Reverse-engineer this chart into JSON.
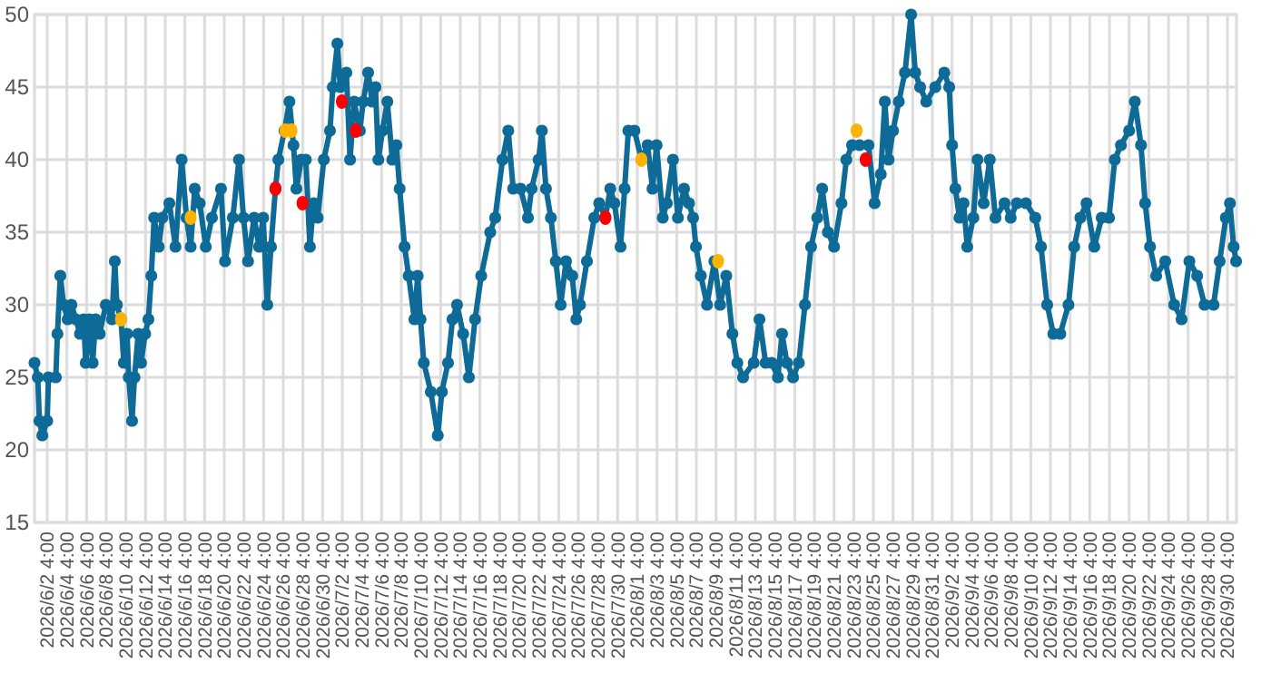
{
  "chart_data": {
    "type": "line",
    "marker": "circle",
    "grid": true,
    "xlim": [
      "2026-05-31T21:00",
      "2026-10-01T02:00"
    ],
    "ylim": [
      15,
      50
    ],
    "yticks": [
      15,
      20,
      25,
      30,
      35,
      40,
      45,
      50
    ],
    "xticks": [
      {
        "value": "2026-06-02T04:00",
        "label": "2026/6/2 4:00"
      },
      {
        "value": "2026-06-04T04:00",
        "label": "2026/6/4 4:00"
      },
      {
        "value": "2026-06-06T04:00",
        "label": "2026/6/6 4:00"
      },
      {
        "value": "2026-06-08T04:00",
        "label": "2026/6/8 4:00"
      },
      {
        "value": "2026-06-10T04:00",
        "label": "2026/6/10 4:00"
      },
      {
        "value": "2026-06-12T04:00",
        "label": "2026/6/12 4:00"
      },
      {
        "value": "2026-06-14T04:00",
        "label": "2026/6/14 4:00"
      },
      {
        "value": "2026-06-16T04:00",
        "label": "2026/6/16 4:00"
      },
      {
        "value": "2026-06-18T04:00",
        "label": "2026/6/18 4:00"
      },
      {
        "value": "2026-06-20T04:00",
        "label": "2026/6/20 4:00"
      },
      {
        "value": "2026-06-22T04:00",
        "label": "2026/6/22 4:00"
      },
      {
        "value": "2026-06-24T04:00",
        "label": "2026/6/24 4:00"
      },
      {
        "value": "2026-06-26T04:00",
        "label": "2026/6/26 4:00"
      },
      {
        "value": "2026-06-28T04:00",
        "label": "2026/6/28 4:00"
      },
      {
        "value": "2026-06-30T04:00",
        "label": "2026/6/30 4:00"
      },
      {
        "value": "2026-07-02T04:00",
        "label": "2026/7/2 4:00"
      },
      {
        "value": "2026-07-04T04:00",
        "label": "2026/7/4 4:00"
      },
      {
        "value": "2026-07-06T04:00",
        "label": "2026/7/6 4:00"
      },
      {
        "value": "2026-07-08T04:00",
        "label": "2026/7/8 4:00"
      },
      {
        "value": "2026-07-10T04:00",
        "label": "2026/7/10 4:00"
      },
      {
        "value": "2026-07-12T04:00",
        "label": "2026/7/12 4:00"
      },
      {
        "value": "2026-07-14T04:00",
        "label": "2026/7/14 4:00"
      },
      {
        "value": "2026-07-16T04:00",
        "label": "2026/7/16 4:00"
      },
      {
        "value": "2026-07-18T04:00",
        "label": "2026/7/18 4:00"
      },
      {
        "value": "2026-07-20T04:00",
        "label": "2026/7/20 4:00"
      },
      {
        "value": "2026-07-22T04:00",
        "label": "2026/7/22 4:00"
      },
      {
        "value": "2026-07-24T04:00",
        "label": "2026/7/24 4:00"
      },
      {
        "value": "2026-07-26T04:00",
        "label": "2026/7/26 4:00"
      },
      {
        "value": "2026-07-28T04:00",
        "label": "2026/7/28 4:00"
      },
      {
        "value": "2026-07-30T04:00",
        "label": "2026/7/30 4:00"
      },
      {
        "value": "2026-08-01T04:00",
        "label": "2026/8/1 4:00"
      },
      {
        "value": "2026-08-03T04:00",
        "label": "2026/8/3 4:00"
      },
      {
        "value": "2026-08-05T04:00",
        "label": "2026/8/5 4:00"
      },
      {
        "value": "2026-08-07T04:00",
        "label": "2026/8/7 4:00"
      },
      {
        "value": "2026-08-09T04:00",
        "label": "2026/8/9 4:00"
      },
      {
        "value": "2026-08-11T04:00",
        "label": "2026/8/11 4:00"
      },
      {
        "value": "2026-08-13T04:00",
        "label": "2026/8/13 4:00"
      },
      {
        "value": "2026-08-15T04:00",
        "label": "2026/8/15 4:00"
      },
      {
        "value": "2026-08-17T04:00",
        "label": "2026/8/17 4:00"
      },
      {
        "value": "2026-08-19T04:00",
        "label": "2026/8/19 4:00"
      },
      {
        "value": "2026-08-21T04:00",
        "label": "2026/8/21 4:00"
      },
      {
        "value": "2026-08-23T04:00",
        "label": "2026/8/23 4:00"
      },
      {
        "value": "2026-08-25T04:00",
        "label": "2026/8/25 4:00"
      },
      {
        "value": "2026-08-27T04:00",
        "label": "2026/8/27 4:00"
      },
      {
        "value": "2026-08-29T04:00",
        "label": "2026/8/29 4:00"
      },
      {
        "value": "2026-08-31T04:00",
        "label": "2026/8/31 4:00"
      },
      {
        "value": "2026-09-02T04:00",
        "label": "2026/9/2 4:00"
      },
      {
        "value": "2026-09-04T04:00",
        "label": "2026/9/4 4:00"
      },
      {
        "value": "2026-09-06T04:00",
        "label": "2026/9/6 4:00"
      },
      {
        "value": "2026-09-08T04:00",
        "label": "2026/9/8 4:00"
      },
      {
        "value": "2026-09-10T04:00",
        "label": "2026/9/10 4:00"
      },
      {
        "value": "2026-09-12T04:00",
        "label": "2026/9/12 4:00"
      },
      {
        "value": "2026-09-14T04:00",
        "label": "2026/9/14 4:00"
      },
      {
        "value": "2026-09-16T04:00",
        "label": "2026/9/16 4:00"
      },
      {
        "value": "2026-09-18T04:00",
        "label": "2026/9/18 4:00"
      },
      {
        "value": "2026-09-20T04:00",
        "label": "2026/9/20 4:00"
      },
      {
        "value": "2026-09-22T04:00",
        "label": "2026/9/22 4:00"
      },
      {
        "value": "2026-09-24T04:00",
        "label": "2026/9/24 4:00"
      },
      {
        "value": "2026-09-26T04:00",
        "label": "2026/9/26 4:00"
      },
      {
        "value": "2026-09-28T04:00",
        "label": "2026/9/28 4:00"
      },
      {
        "value": "2026-09-30T04:00",
        "label": "2026/9/30 4:00"
      }
    ],
    "series": [
      {
        "color": "#0e6a96",
        "x": [
          "2026-05-31T21:00",
          "2026-06-01T05:00",
          "2026-06-01T09:00",
          "2026-06-01T16:00",
          "2026-06-02T04:00",
          "2026-06-02T07:00",
          "2026-06-03T01:00",
          "2026-06-03T05:00",
          "2026-06-03T12:00",
          "2026-06-03T20:00",
          "2026-06-04T06:00",
          "2026-06-04T15:00",
          "2026-06-05T02:00",
          "2026-06-05T12:00",
          "2026-06-05T21:00",
          "2026-06-06T02:00",
          "2026-06-06T11:00",
          "2026-06-06T19:00",
          "2026-06-07T02:00",
          "2026-06-07T12:00",
          "2026-06-08T03:00",
          "2026-06-08T18:00",
          "2026-06-09T01:00",
          "2026-06-09T06:00",
          "2026-06-09T16:00",
          "2026-06-09T23:00",
          "2026-06-10T07:00",
          "2026-06-10T11:00",
          "2026-06-10T19:00",
          "2026-06-11T01:00",
          "2026-06-11T10:00",
          "2026-06-11T17:00",
          "2026-06-12T03:00",
          "2026-06-12T11:00",
          "2026-06-12T18:00",
          "2026-06-13T01:00",
          "2026-06-13T12:00",
          "2026-06-13T21:00",
          "2026-06-14T14:00",
          "2026-06-15T05:00",
          "2026-06-15T20:00",
          "2026-06-16T08:00",
          "2026-06-16T18:00",
          "2026-06-17T04:00",
          "2026-06-17T16:00",
          "2026-06-18T07:00",
          "2026-06-18T22:00",
          "2026-06-19T20:00",
          "2026-06-20T06:00",
          "2026-06-21T01:00",
          "2026-06-21T16:00",
          "2026-06-22T03:00",
          "2026-06-22T14:00",
          "2026-06-23T05:00",
          "2026-06-23T17:00",
          "2026-06-24T03:00",
          "2026-06-24T13:00",
          "2026-06-24T22:00",
          "2026-06-25T09:00",
          "2026-06-25T16:00",
          "2026-06-26T07:00",
          "2026-06-26T19:00",
          "2026-06-27T05:00",
          "2026-06-27T12:00",
          "2026-06-28T00:00",
          "2026-06-28T11:00",
          "2026-06-28T21:00",
          "2026-06-29T06:00",
          "2026-06-29T16:00",
          "2026-06-30T07:00",
          "2026-06-30T22:00",
          "2026-07-01T05:00",
          "2026-07-01T16:00",
          "2026-07-01T23:00",
          "2026-07-02T14:00",
          "2026-07-02T23:00",
          "2026-07-03T09:00",
          "2026-07-03T23:00",
          "2026-07-04T07:00",
          "2026-07-04T19:00",
          "2026-07-05T05:00",
          "2026-07-05T13:00",
          "2026-07-05T20:00",
          "2026-07-06T06:00",
          "2026-07-06T18:00",
          "2026-07-07T06:00",
          "2026-07-07T16:00",
          "2026-07-08T00:00",
          "2026-07-08T12:00",
          "2026-07-08T22:00",
          "2026-07-09T12:00",
          "2026-07-09T20:00",
          "2026-07-10T03:00",
          "2026-07-10T11:00",
          "2026-07-11T04:00",
          "2026-07-11T21:00",
          "2026-07-12T07:00",
          "2026-07-12T22:00",
          "2026-07-13T09:00",
          "2026-07-13T20:00",
          "2026-07-14T11:00",
          "2026-07-15T01:00",
          "2026-07-15T16:00",
          "2026-07-16T07:00",
          "2026-07-17T05:00",
          "2026-07-17T17:00",
          "2026-07-18T11:00",
          "2026-07-19T01:00",
          "2026-07-19T13:00",
          "2026-07-20T07:00",
          "2026-07-21T01:00",
          "2026-07-21T10:00",
          "2026-07-22T03:00",
          "2026-07-22T11:00",
          "2026-07-22T21:00",
          "2026-07-23T09:00",
          "2026-07-23T21:00",
          "2026-07-24T09:00",
          "2026-07-24T22:00",
          "2026-07-25T13:00",
          "2026-07-25T23:00",
          "2026-07-26T08:00",
          "2026-07-27T01:00",
          "2026-07-27T19:00",
          "2026-07-28T07:00",
          "2026-07-28T22:00",
          "2026-07-29T10:00",
          "2026-07-29T20:00",
          "2026-07-30T11:00",
          "2026-07-30T21:00",
          "2026-07-31T06:00",
          "2026-07-31T21:00",
          "2026-08-01T14:00",
          "2026-08-02T05:00",
          "2026-08-02T17:00",
          "2026-08-03T03:00",
          "2026-08-03T18:00",
          "2026-08-04T04:00",
          "2026-08-04T19:00",
          "2026-08-05T07:00",
          "2026-08-05T22:00",
          "2026-08-06T10:00",
          "2026-08-06T20:00",
          "2026-08-07T03:00",
          "2026-08-07T15:00",
          "2026-08-08T06:00",
          "2026-08-09T00:00",
          "2026-08-09T14:00",
          "2026-08-10T05:00",
          "2026-08-10T20:00",
          "2026-08-11T08:00",
          "2026-08-11T22:00",
          "2026-08-13T00:00",
          "2026-08-13T14:00",
          "2026-08-14T05:00",
          "2026-08-14T20:00",
          "2026-08-15T11:00",
          "2026-08-15T21:00",
          "2026-08-16T09:00",
          "2026-08-17T00:00",
          "2026-08-17T14:00",
          "2026-08-18T05:00",
          "2026-08-18T20:00",
          "2026-08-19T11:00",
          "2026-08-19T23:00",
          "2026-08-20T13:00",
          "2026-08-21T04:00",
          "2026-08-21T22:00",
          "2026-08-22T10:00",
          "2026-08-23T00:00",
          "2026-08-23T18:00",
          "2026-08-24T16:00",
          "2026-08-25T07:00",
          "2026-08-25T22:00",
          "2026-08-26T08:00",
          "2026-08-26T17:00",
          "2026-08-27T04:00",
          "2026-08-27T18:00",
          "2026-08-28T09:00",
          "2026-08-29T00:00",
          "2026-08-29T10:00",
          "2026-08-29T22:00",
          "2026-08-30T13:00",
          "2026-08-31T11:00",
          "2026-09-01T09:00",
          "2026-09-01T21:00",
          "2026-09-02T04:00",
          "2026-09-02T12:00",
          "2026-09-02T22:00",
          "2026-09-03T08:00",
          "2026-09-03T17:00",
          "2026-09-04T08:00",
          "2026-09-04T18:00",
          "2026-09-05T09:00",
          "2026-09-06T00:00",
          "2026-09-06T14:00",
          "2026-09-07T12:00",
          "2026-09-08T03:00",
          "2026-09-08T18:00",
          "2026-09-09T16:00",
          "2026-09-10T15:00",
          "2026-09-11T05:00",
          "2026-09-11T20:00",
          "2026-09-12T11:00",
          "2026-09-13T04:00",
          "2026-09-14T00:00",
          "2026-09-14T14:00",
          "2026-09-15T05:00",
          "2026-09-15T20:00",
          "2026-09-16T15:00",
          "2026-09-17T09:00",
          "2026-09-18T03:00",
          "2026-09-18T17:00",
          "2026-09-19T08:00",
          "2026-09-20T04:00",
          "2026-09-20T18:00",
          "2026-09-21T09:00",
          "2026-09-21T19:00",
          "2026-09-22T07:00",
          "2026-09-22T22:00",
          "2026-09-23T20:00",
          "2026-09-24T18:00",
          "2026-09-25T12:00",
          "2026-09-26T07:00",
          "2026-09-27T02:00",
          "2026-09-27T20:00",
          "2026-09-28T18:00",
          "2026-09-29T09:00",
          "2026-09-30T00:00",
          "2026-09-30T10:00",
          "2026-09-30T19:00",
          "2026-10-01T01:00"
        ],
        "values": [
          26,
          25,
          22,
          21,
          22,
          25,
          25,
          28,
          32,
          30,
          29,
          30,
          29,
          28,
          29,
          26,
          29,
          26,
          29,
          28,
          30,
          29,
          33,
          30,
          29,
          26,
          28,
          25,
          22,
          25,
          28,
          26,
          28,
          29,
          32,
          36,
          34,
          36,
          37,
          34,
          40,
          36,
          34,
          38,
          37,
          34,
          36,
          38,
          33,
          36,
          40,
          36,
          33,
          36,
          34,
          36,
          30,
          34,
          38,
          40,
          42,
          44,
          41,
          38,
          40,
          40,
          34,
          37,
          36,
          40,
          42,
          45,
          48,
          45,
          46,
          40,
          44,
          42,
          44,
          46,
          44,
          45,
          40,
          42,
          44,
          40,
          41,
          38,
          34,
          32,
          29,
          32,
          29,
          26,
          24,
          21,
          24,
          26,
          29,
          30,
          28,
          25,
          29,
          32,
          35,
          36,
          40,
          42,
          38,
          38,
          36,
          38,
          40,
          42,
          38,
          36,
          33,
          30,
          33,
          32,
          29,
          30,
          33,
          36,
          37,
          36,
          38,
          37,
          34,
          38,
          42,
          42,
          40,
          41,
          38,
          41,
          36,
          37,
          40,
          36,
          38,
          37,
          36,
          34,
          32,
          30,
          33,
          30,
          32,
          28,
          26,
          25,
          26,
          29,
          26,
          26,
          25,
          28,
          26,
          25,
          26,
          30,
          34,
          36,
          38,
          35,
          34,
          37,
          40,
          41,
          41,
          41,
          37,
          39,
          44,
          40,
          42,
          44,
          46,
          50,
          46,
          45,
          44,
          45,
          46,
          45,
          41,
          38,
          36,
          37,
          34,
          36,
          40,
          37,
          40,
          36,
          37,
          36,
          37,
          37,
          36,
          34,
          30,
          28,
          28,
          30,
          34,
          36,
          37,
          34,
          36,
          36,
          40,
          41,
          42,
          44,
          41,
          37,
          34,
          32,
          33,
          30,
          29,
          33,
          32,
          30,
          30,
          33,
          36,
          37,
          34,
          33
        ]
      },
      {
        "type": "scatter",
        "color": "#ffb300",
        "x": [
          "2026-06-09T16:00",
          "2026-06-16T18:00",
          "2026-06-26T09:00",
          "2026-06-27T00:00",
          "2026-08-01T14:00",
          "2026-08-09T09:00",
          "2026-08-23T11:00"
        ],
        "values": [
          29,
          36,
          42,
          42,
          40,
          33,
          42
        ]
      },
      {
        "type": "scatter",
        "color": "#ff0000",
        "x": [
          "2026-06-25T09:00",
          "2026-06-28T03:00",
          "2026-07-02T03:00",
          "2026-07-03T13:00",
          "2026-07-28T22:00",
          "2026-08-24T09:00"
        ],
        "values": [
          38,
          37,
          44,
          42,
          36,
          40
        ]
      }
    ]
  }
}
